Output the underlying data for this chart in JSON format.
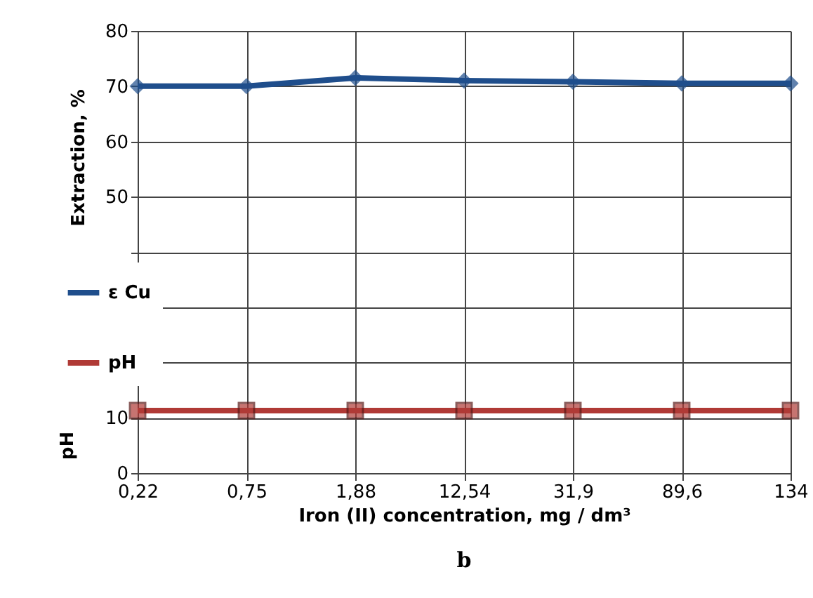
{
  "chart_data": {
    "type": "line",
    "xlabel": "Iron (II) concentration, mg / dm³",
    "ylabel": "Extraction, %",
    "annotations": [
      "pH",
      "b"
    ],
    "categories": [
      "0,22",
      "0,75",
      "1,88",
      "12,54",
      "31,9",
      "89,6",
      "134"
    ],
    "series": [
      {
        "name": "ε Cu",
        "color": "#1f4e8c",
        "marker": "diamond",
        "values": [
          70,
          70,
          71.5,
          71,
          70.8,
          70.5,
          70.5
        ]
      },
      {
        "name": "pH",
        "color": "#b03a36",
        "marker": "square",
        "values": [
          11.3,
          11.3,
          11.3,
          11.3,
          11.3,
          11.3,
          11.3
        ]
      }
    ],
    "ylim": [
      0,
      80
    ],
    "yticks": [
      0,
      10,
      {
        "value": 20,
        "label": null
      },
      {
        "value": 30,
        "label": null
      },
      {
        "value": 40,
        "label": null
      },
      50,
      60,
      70,
      80
    ],
    "grid": true,
    "legend": "left",
    "line_style": "solid"
  }
}
